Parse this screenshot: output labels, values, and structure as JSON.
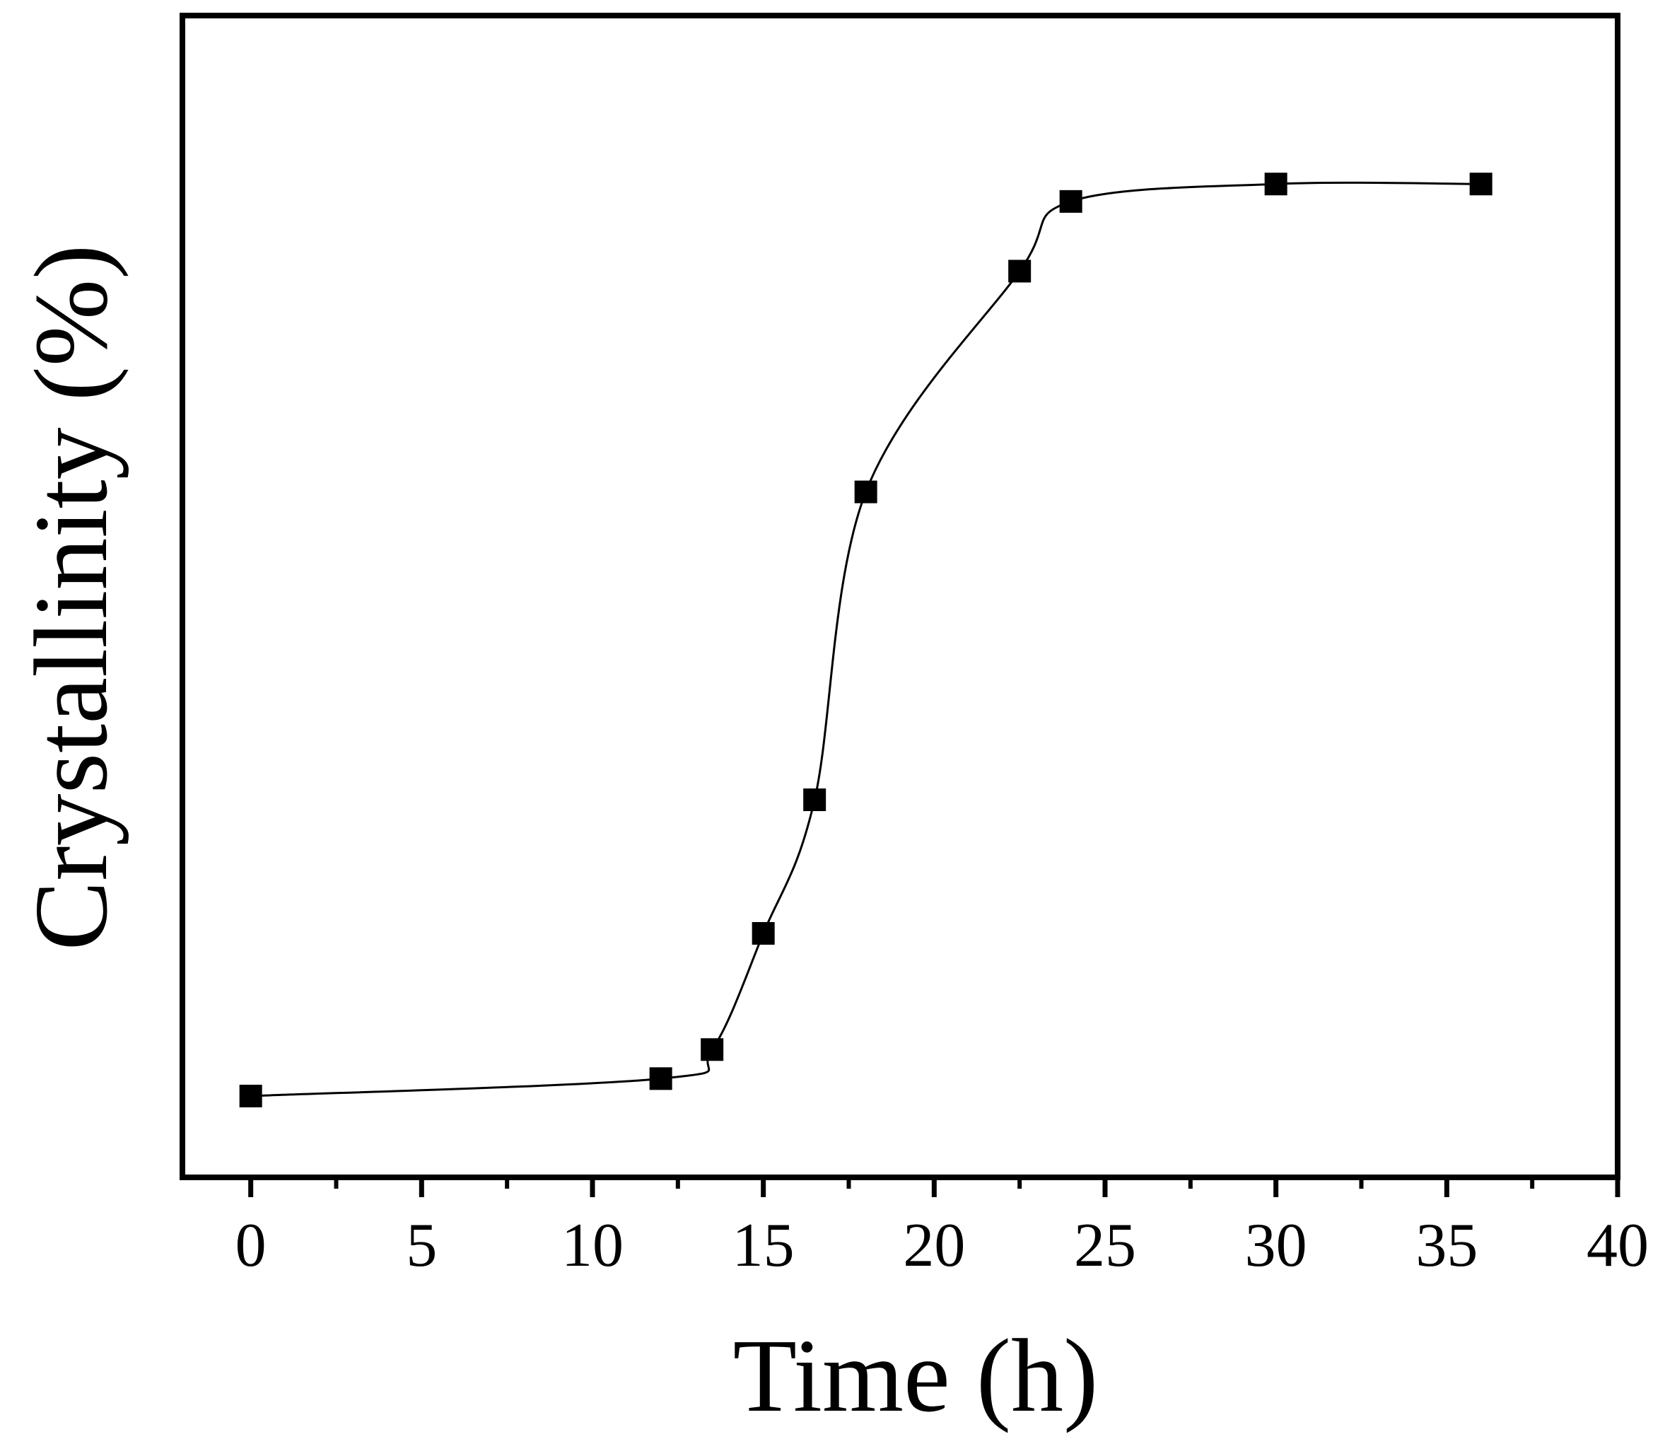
{
  "chart_data": {
    "type": "scatter",
    "title": "",
    "xlabel": "Time (h)",
    "ylabel": "Crystallinity (%)",
    "xlim": [
      -2,
      40
    ],
    "ylim": [
      0,
      100
    ],
    "x_ticks": [
      0,
      5,
      10,
      15,
      20,
      25,
      30,
      35,
      40
    ],
    "y_ticks_shown": false,
    "grid": false,
    "legend": "none",
    "marker": "filled-square",
    "fit_curve": "sigmoid",
    "color": "#000000",
    "series": [
      {
        "x": [
          0,
          12,
          13.5,
          15,
          16.5,
          18,
          22.5,
          24,
          30,
          36
        ],
        "y": [
          7,
          8.5,
          11,
          21,
          32.5,
          59,
          78,
          84,
          85.5,
          85.5
        ]
      }
    ]
  }
}
